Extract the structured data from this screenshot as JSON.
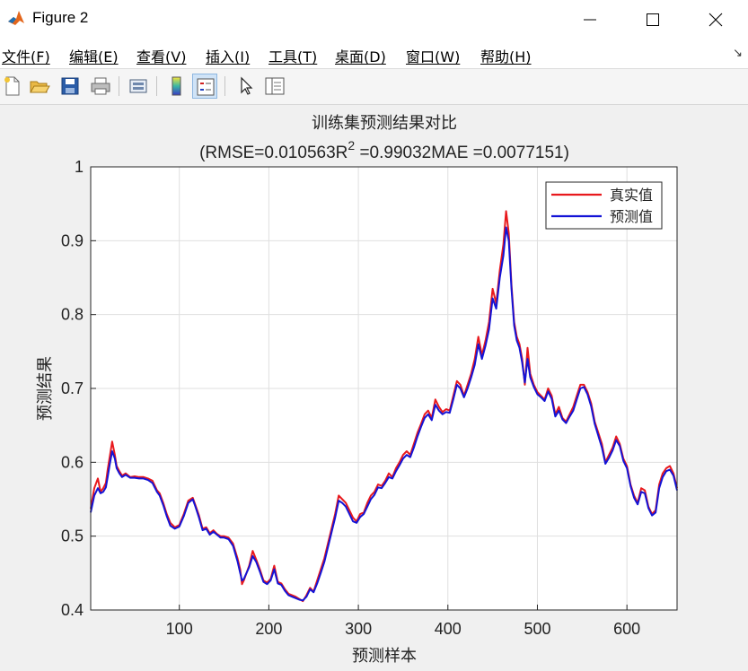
{
  "window": {
    "title": "Figure 2",
    "minimize_glyph": "minimize-icon",
    "maximize_glyph": "maximize-icon",
    "close_glyph": "close-icon"
  },
  "menu": {
    "items": [
      "文件(F)",
      "编辑(E)",
      "查看(V)",
      "插入(I)",
      "工具(T)",
      "桌面(D)",
      "窗口(W)",
      "帮助(H)"
    ],
    "overflow_icon": "dock-arrow-icon"
  },
  "toolbar": {
    "buttons": [
      "new-figure-icon",
      "open-file-icon",
      "save-icon",
      "print-icon",
      "link-plot-icon",
      "insert-colorbar-icon",
      "insert-legend-icon",
      "edit-plot-icon",
      "property-editor-icon"
    ],
    "active": "insert-legend-icon"
  },
  "chart_data": {
    "type": "line",
    "title": "训练集预测结果对比",
    "subtitle_parts": [
      "(RMSE=0.010563R",
      "2",
      " =0.99032MAE =0.0077151)"
    ],
    "xlabel": "预测样本",
    "ylabel": "预测结果",
    "xlim": [
      1,
      656
    ],
    "ylim": [
      0.4,
      1.0
    ],
    "xticks": [
      100,
      200,
      300,
      400,
      500,
      600
    ],
    "yticks": [
      0.4,
      0.5,
      0.6,
      0.7,
      0.8,
      0.9,
      1.0
    ],
    "ytick_labels": [
      "0.4",
      "0.5",
      "0.6",
      "0.7",
      "0.8",
      "0.9",
      "1"
    ],
    "grid": true,
    "legend_position": "top-right",
    "colors": {
      "actual": "#e8191d",
      "predicted": "#1313d6"
    },
    "series": [
      {
        "name": "真实值",
        "key": "actual",
        "x": [
          1,
          5,
          9,
          12,
          15,
          18,
          20,
          22,
          25,
          28,
          30,
          33,
          36,
          40,
          45,
          50,
          55,
          60,
          65,
          70,
          75,
          78,
          82,
          86,
          90,
          95,
          100,
          105,
          110,
          115,
          118,
          122,
          126,
          130,
          134,
          138,
          142,
          146,
          150,
          155,
          160,
          165,
          168,
          170,
          172,
          175,
          178,
          182,
          186,
          190,
          194,
          198,
          202,
          206,
          210,
          214,
          218,
          222,
          226,
          230,
          234,
          238,
          242,
          246,
          250,
          254,
          258,
          262,
          266,
          270,
          274,
          278,
          282,
          286,
          290,
          294,
          298,
          302,
          306,
          310,
          314,
          318,
          322,
          326,
          330,
          334,
          338,
          342,
          346,
          350,
          354,
          358,
          362,
          366,
          370,
          374,
          378,
          382,
          386,
          390,
          394,
          398,
          402,
          406,
          410,
          414,
          418,
          422,
          426,
          430,
          434,
          438,
          442,
          446,
          450,
          454,
          458,
          462,
          465,
          468,
          471,
          474,
          477,
          480,
          483,
          486,
          489,
          492,
          496,
          500,
          504,
          508,
          512,
          516,
          520,
          524,
          528,
          532,
          536,
          540,
          544,
          548,
          552,
          556,
          560,
          564,
          568,
          572,
          576,
          580,
          584,
          588,
          592,
          596,
          600,
          604,
          608,
          612,
          616,
          620,
          624,
          628,
          632,
          636,
          640,
          644,
          648,
          652,
          656
        ],
        "y": [
          0.537,
          0.565,
          0.578,
          0.56,
          0.565,
          0.572,
          0.59,
          0.605,
          0.628,
          0.61,
          0.595,
          0.588,
          0.582,
          0.585,
          0.58,
          0.581,
          0.58,
          0.58,
          0.578,
          0.575,
          0.562,
          0.558,
          0.545,
          0.53,
          0.518,
          0.512,
          0.515,
          0.53,
          0.548,
          0.552,
          0.542,
          0.528,
          0.51,
          0.512,
          0.504,
          0.508,
          0.503,
          0.5,
          0.5,
          0.498,
          0.49,
          0.47,
          0.455,
          0.435,
          0.44,
          0.45,
          0.46,
          0.48,
          0.468,
          0.455,
          0.44,
          0.437,
          0.442,
          0.46,
          0.438,
          0.436,
          0.428,
          0.422,
          0.42,
          0.418,
          0.415,
          0.412,
          0.42,
          0.43,
          0.425,
          0.44,
          0.455,
          0.47,
          0.49,
          0.51,
          0.53,
          0.555,
          0.55,
          0.545,
          0.535,
          0.525,
          0.52,
          0.53,
          0.532,
          0.545,
          0.555,
          0.56,
          0.57,
          0.568,
          0.575,
          0.585,
          0.58,
          0.592,
          0.6,
          0.61,
          0.615,
          0.61,
          0.625,
          0.64,
          0.652,
          0.665,
          0.67,
          0.66,
          0.685,
          0.675,
          0.668,
          0.672,
          0.67,
          0.69,
          0.71,
          0.705,
          0.69,
          0.705,
          0.72,
          0.74,
          0.77,
          0.745,
          0.765,
          0.79,
          0.835,
          0.815,
          0.86,
          0.895,
          0.94,
          0.91,
          0.84,
          0.79,
          0.77,
          0.76,
          0.74,
          0.705,
          0.755,
          0.72,
          0.705,
          0.695,
          0.69,
          0.685,
          0.7,
          0.69,
          0.665,
          0.675,
          0.66,
          0.655,
          0.665,
          0.675,
          0.69,
          0.705,
          0.705,
          0.695,
          0.68,
          0.655,
          0.64,
          0.625,
          0.6,
          0.61,
          0.62,
          0.635,
          0.625,
          0.605,
          0.595,
          0.57,
          0.555,
          0.545,
          0.565,
          0.562,
          0.54,
          0.53,
          0.535,
          0.57,
          0.585,
          0.592,
          0.595,
          0.585,
          0.565
        ]
      },
      {
        "name": "预测值",
        "key": "predicted",
        "x": [
          1,
          5,
          9,
          12,
          15,
          18,
          20,
          22,
          25,
          28,
          30,
          33,
          36,
          40,
          45,
          50,
          55,
          60,
          65,
          70,
          75,
          78,
          82,
          86,
          90,
          95,
          100,
          105,
          110,
          115,
          118,
          122,
          126,
          130,
          134,
          138,
          142,
          146,
          150,
          155,
          160,
          165,
          168,
          170,
          172,
          175,
          178,
          182,
          186,
          190,
          194,
          198,
          202,
          206,
          210,
          214,
          218,
          222,
          226,
          230,
          234,
          238,
          242,
          246,
          250,
          254,
          258,
          262,
          266,
          270,
          274,
          278,
          282,
          286,
          290,
          294,
          298,
          302,
          306,
          310,
          314,
          318,
          322,
          326,
          330,
          334,
          338,
          342,
          346,
          350,
          354,
          358,
          362,
          366,
          370,
          374,
          378,
          382,
          386,
          390,
          394,
          398,
          402,
          406,
          410,
          414,
          418,
          422,
          426,
          430,
          434,
          438,
          442,
          446,
          450,
          454,
          458,
          462,
          465,
          468,
          471,
          474,
          477,
          480,
          483,
          486,
          489,
          492,
          496,
          500,
          504,
          508,
          512,
          516,
          520,
          524,
          528,
          532,
          536,
          540,
          544,
          548,
          552,
          556,
          560,
          564,
          568,
          572,
          576,
          580,
          584,
          588,
          592,
          596,
          600,
          604,
          608,
          612,
          616,
          620,
          624,
          628,
          632,
          636,
          640,
          644,
          648,
          652,
          656
        ],
        "y": [
          0.532,
          0.555,
          0.565,
          0.558,
          0.56,
          0.566,
          0.58,
          0.595,
          0.615,
          0.605,
          0.592,
          0.585,
          0.58,
          0.583,
          0.579,
          0.579,
          0.578,
          0.578,
          0.576,
          0.572,
          0.56,
          0.555,
          0.542,
          0.527,
          0.514,
          0.51,
          0.513,
          0.527,
          0.545,
          0.55,
          0.54,
          0.525,
          0.508,
          0.51,
          0.502,
          0.506,
          0.502,
          0.498,
          0.498,
          0.496,
          0.487,
          0.466,
          0.45,
          0.44,
          0.442,
          0.45,
          0.458,
          0.473,
          0.465,
          0.452,
          0.438,
          0.435,
          0.44,
          0.455,
          0.436,
          0.434,
          0.426,
          0.42,
          0.418,
          0.416,
          0.414,
          0.413,
          0.418,
          0.428,
          0.424,
          0.436,
          0.45,
          0.465,
          0.485,
          0.505,
          0.525,
          0.548,
          0.545,
          0.54,
          0.53,
          0.52,
          0.518,
          0.526,
          0.53,
          0.54,
          0.55,
          0.556,
          0.566,
          0.565,
          0.572,
          0.58,
          0.578,
          0.588,
          0.596,
          0.605,
          0.61,
          0.607,
          0.62,
          0.635,
          0.648,
          0.66,
          0.665,
          0.657,
          0.678,
          0.67,
          0.665,
          0.668,
          0.667,
          0.685,
          0.705,
          0.7,
          0.688,
          0.7,
          0.715,
          0.732,
          0.76,
          0.74,
          0.758,
          0.78,
          0.822,
          0.808,
          0.85,
          0.88,
          0.918,
          0.9,
          0.835,
          0.785,
          0.765,
          0.755,
          0.735,
          0.708,
          0.74,
          0.715,
          0.702,
          0.692,
          0.688,
          0.683,
          0.696,
          0.686,
          0.662,
          0.67,
          0.658,
          0.653,
          0.662,
          0.67,
          0.685,
          0.7,
          0.702,
          0.692,
          0.676,
          0.652,
          0.636,
          0.62,
          0.598,
          0.606,
          0.616,
          0.63,
          0.622,
          0.602,
          0.592,
          0.568,
          0.552,
          0.543,
          0.56,
          0.558,
          0.538,
          0.528,
          0.532,
          0.565,
          0.58,
          0.588,
          0.59,
          0.582,
          0.562
        ]
      }
    ]
  }
}
